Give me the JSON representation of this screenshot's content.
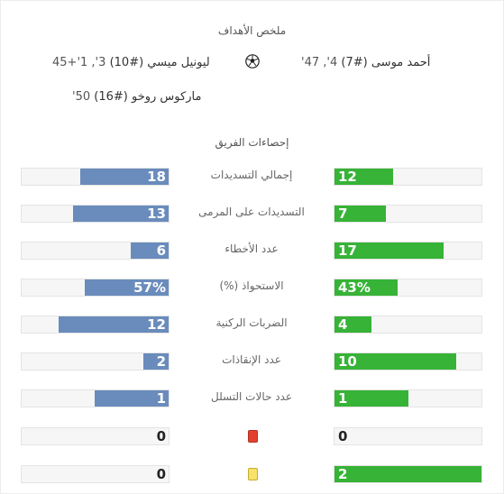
{
  "summary": {
    "title": "ملخص الأهداف",
    "team_stats_title": "إحصاءات الفريق"
  },
  "goals": {
    "home": [
      {
        "player": "أحمد موسى (#7)",
        "minutes": "4', 47'"
      }
    ],
    "away": [
      {
        "player": "ليونيل ميسي (#10)",
        "minutes": "3', 1'+45"
      },
      {
        "player": "ماركوس روخو (#16)",
        "minutes": "50'"
      }
    ]
  },
  "icons": {
    "goal": "soccer-ball-icon",
    "red_card": "red-card-icon",
    "yellow_card": "yellow-card-icon"
  },
  "colors": {
    "home_bar": "#37b337",
    "away_bar": "#6a8cbc",
    "red_card": "#e2412f",
    "yellow_card": "#f7e26b"
  },
  "stats": [
    {
      "label": "إجمالي التسديدات",
      "away": "18",
      "home": "12",
      "away_frac": 0.6,
      "home_frac": 0.4
    },
    {
      "label": "التسديدات على المرمى",
      "away": "13",
      "home": "7",
      "away_frac": 0.65,
      "home_frac": 0.35
    },
    {
      "label": "عدد الأخطاء",
      "away": "6",
      "home": "17",
      "away_frac": 0.26,
      "home_frac": 0.74
    },
    {
      "label": "الاستحواذ (%)",
      "away": "57%",
      "home": "43%",
      "away_frac": 0.57,
      "home_frac": 0.43
    },
    {
      "label": "الضربات الركنية",
      "away": "12",
      "home": "4",
      "away_frac": 0.75,
      "home_frac": 0.25
    },
    {
      "label": "عدد الإنقاذات",
      "away": "2",
      "home": "10",
      "away_frac": 0.17,
      "home_frac": 0.83
    },
    {
      "label": "عدد حالات التسلل",
      "away": "1",
      "home": "1",
      "away_frac": 0.5,
      "home_frac": 0.5
    },
    {
      "label": "",
      "card": "red",
      "away": "0",
      "home": "0",
      "away_frac": 0,
      "home_frac": 0
    },
    {
      "label": "",
      "card": "yellow",
      "away": "0",
      "home": "2",
      "away_frac": 0,
      "home_frac": 1.0
    }
  ]
}
